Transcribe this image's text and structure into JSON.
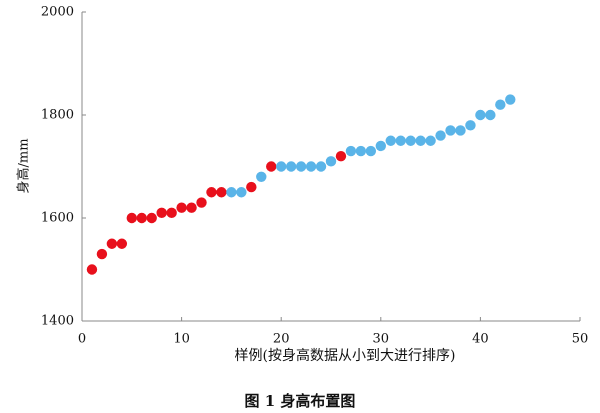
{
  "chart_data": {
    "type": "scatter",
    "title": "图 1  身高布置图",
    "xlabel": "样例(按身高数据从小到大进行排序)",
    "ylabel": "身高/mm",
    "xlim": [
      0,
      50
    ],
    "xticks": [
      0,
      10,
      20,
      30,
      40,
      50
    ],
    "ylim": [
      1400,
      2000
    ],
    "yticks": [
      1400,
      1600,
      1800,
      2000
    ],
    "grid": false,
    "series": [
      {
        "color": "#e8101c",
        "x": [
          1,
          2,
          3,
          4,
          5,
          6,
          7,
          8,
          9,
          10,
          11,
          12,
          13,
          14,
          17,
          19,
          26
        ],
        "values": [
          1500,
          1530,
          1550,
          1550,
          1600,
          1600,
          1600,
          1610,
          1610,
          1620,
          1620,
          1630,
          1650,
          1650,
          1660,
          1700,
          1720
        ]
      },
      {
        "color": "#5ab4e8",
        "x": [
          15,
          16,
          18,
          20,
          21,
          22,
          23,
          24,
          25,
          27,
          28,
          29,
          30,
          31,
          32,
          33,
          34,
          35,
          36,
          37,
          38,
          39,
          40,
          41,
          42,
          43
        ],
        "values": [
          1650,
          1650,
          1680,
          1700,
          1700,
          1700,
          1700,
          1700,
          1710,
          1730,
          1730,
          1730,
          1740,
          1750,
          1750,
          1750,
          1750,
          1750,
          1760,
          1770,
          1770,
          1780,
          1800,
          1800,
          1820,
          1830
        ]
      }
    ]
  }
}
